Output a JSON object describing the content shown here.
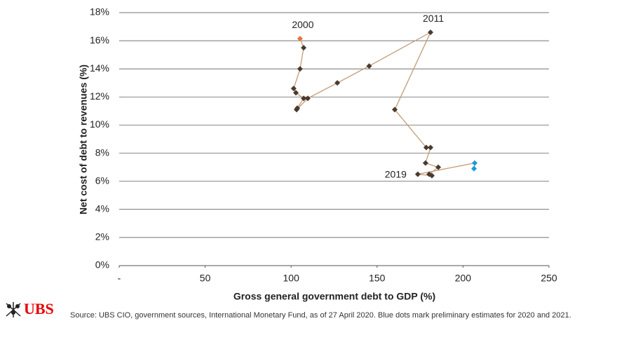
{
  "chart_data": {
    "type": "connected_scatter",
    "y_label": "Net cost of debt to revenues (%)",
    "x_label": "Gross general government debt to GDP (%)",
    "xlim": [
      0,
      250
    ],
    "xticks": [
      {
        "value": 0,
        "label": "-"
      },
      50,
      100,
      150,
      200,
      250
    ],
    "ylim": [
      0,
      18
    ],
    "yticks": [
      {
        "value": 0,
        "label": "0%"
      },
      {
        "value": 2,
        "label": "2%"
      },
      {
        "value": 4,
        "label": "4%"
      },
      {
        "value": 6,
        "label": "6%"
      },
      {
        "value": 8,
        "label": "8%"
      },
      {
        "value": 10,
        "label": "10%"
      },
      {
        "value": 12,
        "label": "12%"
      },
      {
        "value": 14,
        "label": "14%"
      },
      {
        "value": 16,
        "label": "16%"
      },
      {
        "value": 18,
        "label": "18%"
      }
    ],
    "grid": true,
    "line_color": "#c49a74",
    "x": [
      105.2,
      107.3,
      105.2,
      101.5,
      102.8,
      107.3,
      103.6,
      103.2,
      109.7,
      126.9,
      145.4,
      181.1,
      160.3,
      178.6,
      181.1,
      178.2,
      185.6,
      180.3,
      181.9,
      173.7,
      206.8,
      206.4
    ],
    "values": [
      16.15,
      15.5,
      14.0,
      12.6,
      12.3,
      11.9,
      11.2,
      11.1,
      11.9,
      13.0,
      14.2,
      16.6,
      11.1,
      8.4,
      8.4,
      7.3,
      7.0,
      6.5,
      6.4,
      6.5,
      7.3,
      6.9
    ],
    "point_colors": [
      "#e8743b",
      "#4a3a2e",
      "#4a3a2e",
      "#4a3a2e",
      "#4a3a2e",
      "#4a3a2e",
      "#4a3a2e",
      "#4a3a2e",
      "#4a3a2e",
      "#4a3a2e",
      "#4a3a2e",
      "#4a3a2e",
      "#4a3a2e",
      "#4a3a2e",
      "#4a3a2e",
      "#4a3a2e",
      "#4a3a2e",
      "#4a3a2e",
      "#4a3a2e",
      "#4a3a2e",
      "#1a9bd7",
      "#1a9bd7"
    ],
    "point_labels": [
      "2000",
      null,
      null,
      null,
      null,
      null,
      null,
      null,
      null,
      null,
      null,
      "2011",
      null,
      null,
      null,
      null,
      null,
      null,
      null,
      "2019",
      null,
      null
    ]
  },
  "footer": {
    "logo": "UBS",
    "source": "Source: UBS CIO, government sources, International Monetary Fund, as of 27  April 2020. Blue dots mark preliminary estimates for 2020 and 2021."
  }
}
